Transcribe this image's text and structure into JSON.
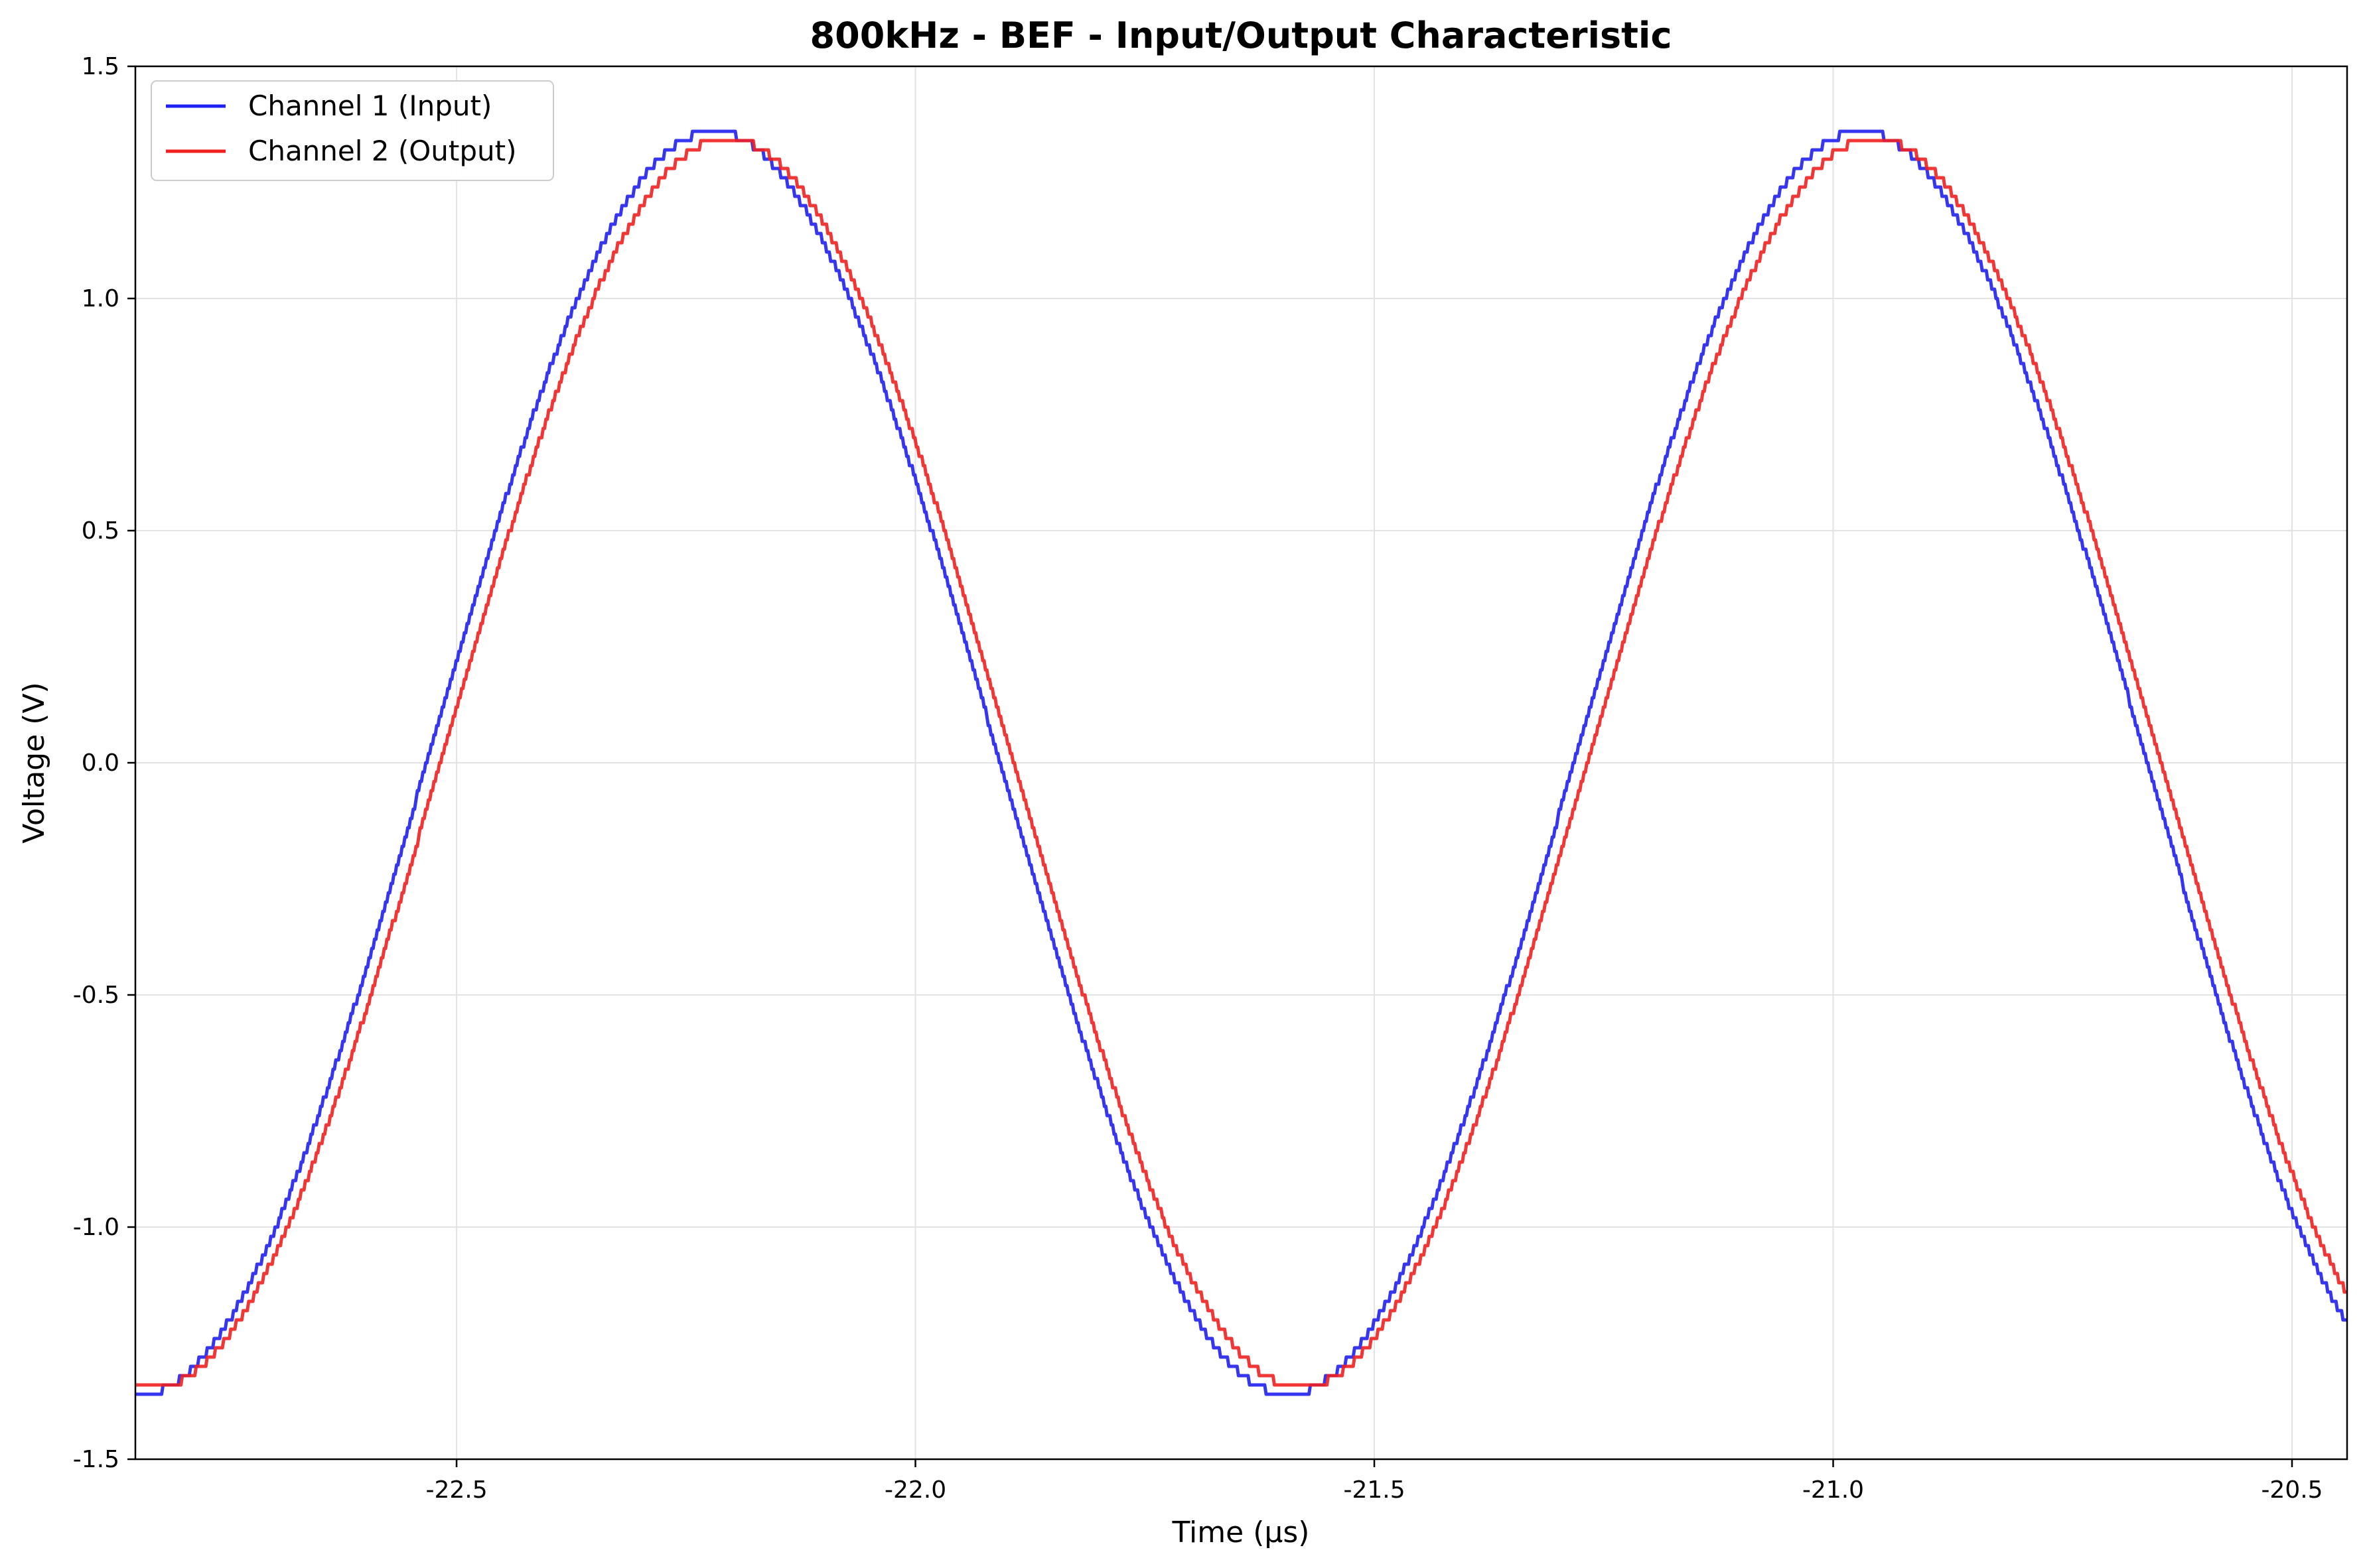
{
  "chart_data": {
    "type": "line",
    "title": "800kHz - BEF - Input/Output Characteristic",
    "xlabel": "Time (µs)",
    "ylabel": "Voltage (V)",
    "xlim": [
      -22.85,
      -20.44
    ],
    "ylim": [
      -1.5,
      1.5
    ],
    "xticks": [
      -22.5,
      -22.0,
      -21.5,
      -21.0,
      -20.5
    ],
    "xtick_labels": [
      "-22.5",
      "-22.0",
      "-21.5",
      "-21.0",
      "-20.5"
    ],
    "yticks": [
      -1.5,
      -1.0,
      -0.5,
      0.0,
      0.5,
      1.0,
      1.5
    ],
    "ytick_labels": [
      "-1.5",
      "-1.0",
      "-0.5",
      "0.0",
      "0.5",
      "1.0",
      "1.5"
    ],
    "grid": true,
    "legend_position": "top-left",
    "frequency_khz": 800,
    "series": [
      {
        "name": "Channel 1 (Input)",
        "color": "#2020f0",
        "amplitude": 1.36,
        "phase_peak_time_us": -22.22,
        "quantization_step": 0.02
      },
      {
        "name": "Channel 2 (Output)",
        "color": "#f02020",
        "amplitude": 1.345,
        "phase_peak_time_us": -22.205,
        "quantization_step": 0.02
      }
    ]
  }
}
